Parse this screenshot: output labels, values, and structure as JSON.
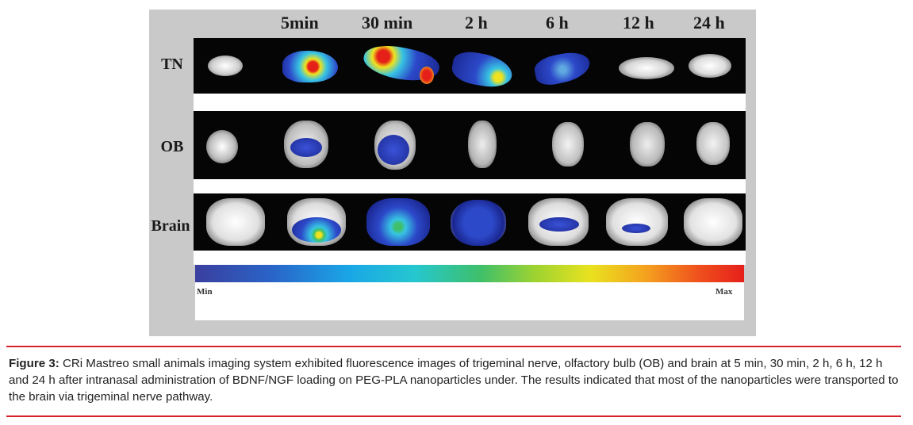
{
  "figure": {
    "time_points": [
      "5min",
      "30 min",
      "2 h",
      "6 h",
      "12 h",
      "24 h"
    ],
    "rows": [
      "TN",
      "OB",
      "Brain"
    ],
    "colorbar": {
      "min_label": "Min",
      "max_label": "Max"
    }
  },
  "caption": {
    "label": "Figure 3:",
    "text": "CRi Mastreo small animals imaging system exhibited fluorescence images of trigeminal nerve, olfactory bulb (OB) and brain at 5 min, 30 min, 2 h, 6 h, 12 h and 24 h after intranasal administration of BDNF/NGF loading on PEG-PLA nanoparticles under. The results indicated that most of the nanoparticles were transported to the brain via trigeminal nerve pathway."
  },
  "colors": {
    "rule": "#d4232a",
    "panel_bg": "#c9c9c9"
  }
}
